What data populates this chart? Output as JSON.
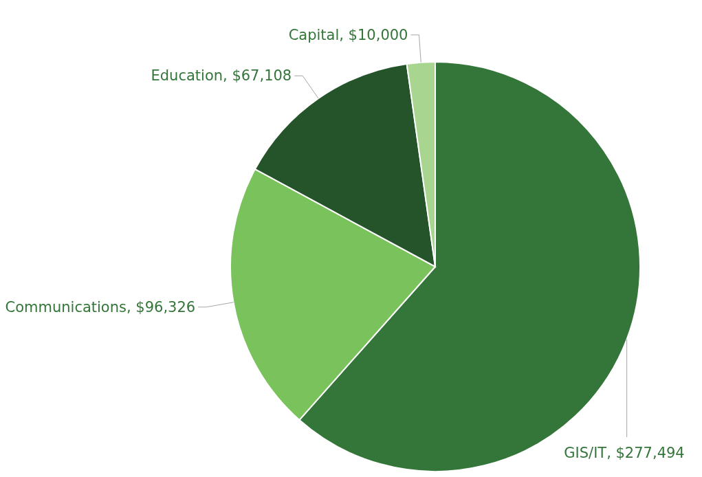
{
  "chart_data": {
    "type": "pie",
    "categories": [
      "GIS/IT",
      "Communications",
      "Education",
      "Capital"
    ],
    "values": [
      277494,
      96326,
      67108,
      10000
    ],
    "value_labels": [
      "$277,494",
      "$96,326",
      "$67,108",
      "$10,000"
    ],
    "colors": [
      "#34763a",
      "#7ac35c",
      "#25542a",
      "#a8d58f"
    ],
    "legend": false
  }
}
